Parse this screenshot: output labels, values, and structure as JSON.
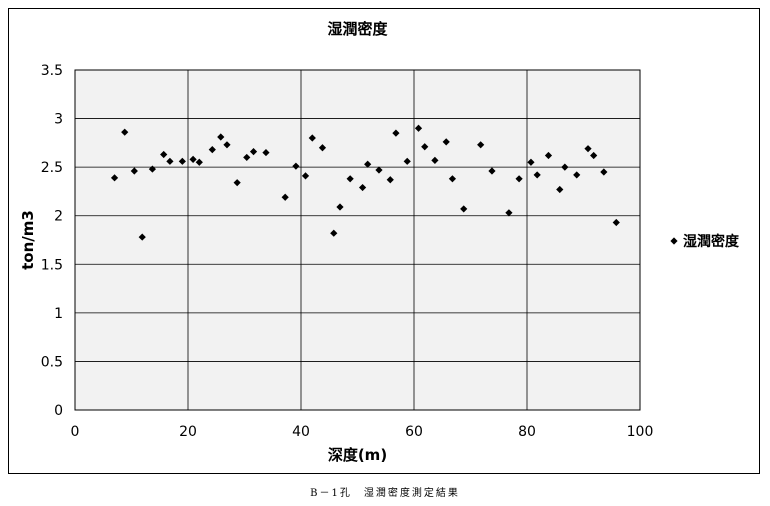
{
  "chart_data": {
    "type": "scatter",
    "title": "湿潤密度",
    "xlabel": "深度(m)",
    "ylabel": "ton/m3",
    "xlim": [
      0,
      100
    ],
    "ylim": [
      0,
      3.5
    ],
    "x_ticks": [
      "0",
      "20",
      "40",
      "60",
      "80",
      "100"
    ],
    "y_ticks": [
      "0",
      "0.5",
      "1",
      "1.5",
      "2",
      "2.5",
      "3",
      "3.5"
    ],
    "grid": "horizontal and vertical major",
    "legend_position": "right",
    "series": [
      {
        "name": "湿潤密度",
        "marker": "diamond",
        "color": "#000000",
        "points": [
          [
            7,
            2.39
          ],
          [
            8.8,
            2.86
          ],
          [
            10.5,
            2.46
          ],
          [
            11.9,
            1.78
          ],
          [
            13.7,
            2.48
          ],
          [
            15.7,
            2.63
          ],
          [
            16.8,
            2.56
          ],
          [
            19,
            2.56
          ],
          [
            20.9,
            2.58
          ],
          [
            22,
            2.55
          ],
          [
            24.3,
            2.68
          ],
          [
            25.8,
            2.81
          ],
          [
            26.9,
            2.73
          ],
          [
            28.7,
            2.34
          ],
          [
            30.4,
            2.6
          ],
          [
            31.6,
            2.66
          ],
          [
            33.8,
            2.65
          ],
          [
            37.2,
            2.19
          ],
          [
            39.1,
            2.51
          ],
          [
            40.8,
            2.41
          ],
          [
            42,
            2.8
          ],
          [
            43.8,
            2.7
          ],
          [
            45.8,
            1.82
          ],
          [
            46.9,
            2.09
          ],
          [
            48.7,
            2.38
          ],
          [
            50.9,
            2.29
          ],
          [
            51.8,
            2.53
          ],
          [
            53.8,
            2.47
          ],
          [
            55.8,
            2.37
          ],
          [
            56.8,
            2.85
          ],
          [
            58.8,
            2.56
          ],
          [
            60.8,
            2.9
          ],
          [
            61.9,
            2.71
          ],
          [
            63.7,
            2.57
          ],
          [
            65.7,
            2.76
          ],
          [
            66.8,
            2.38
          ],
          [
            68.8,
            2.07
          ],
          [
            71.8,
            2.73
          ],
          [
            73.8,
            2.46
          ],
          [
            76.8,
            2.03
          ],
          [
            78.6,
            2.38
          ],
          [
            80.7,
            2.55
          ],
          [
            81.8,
            2.42
          ],
          [
            83.8,
            2.62
          ],
          [
            85.8,
            2.27
          ],
          [
            86.7,
            2.5
          ],
          [
            88.8,
            2.42
          ],
          [
            90.8,
            2.69
          ],
          [
            91.8,
            2.62
          ],
          [
            93.6,
            2.45
          ],
          [
            95.8,
            1.93
          ]
        ]
      }
    ]
  },
  "caption": "B－1孔　湿潤密度測定結果"
}
